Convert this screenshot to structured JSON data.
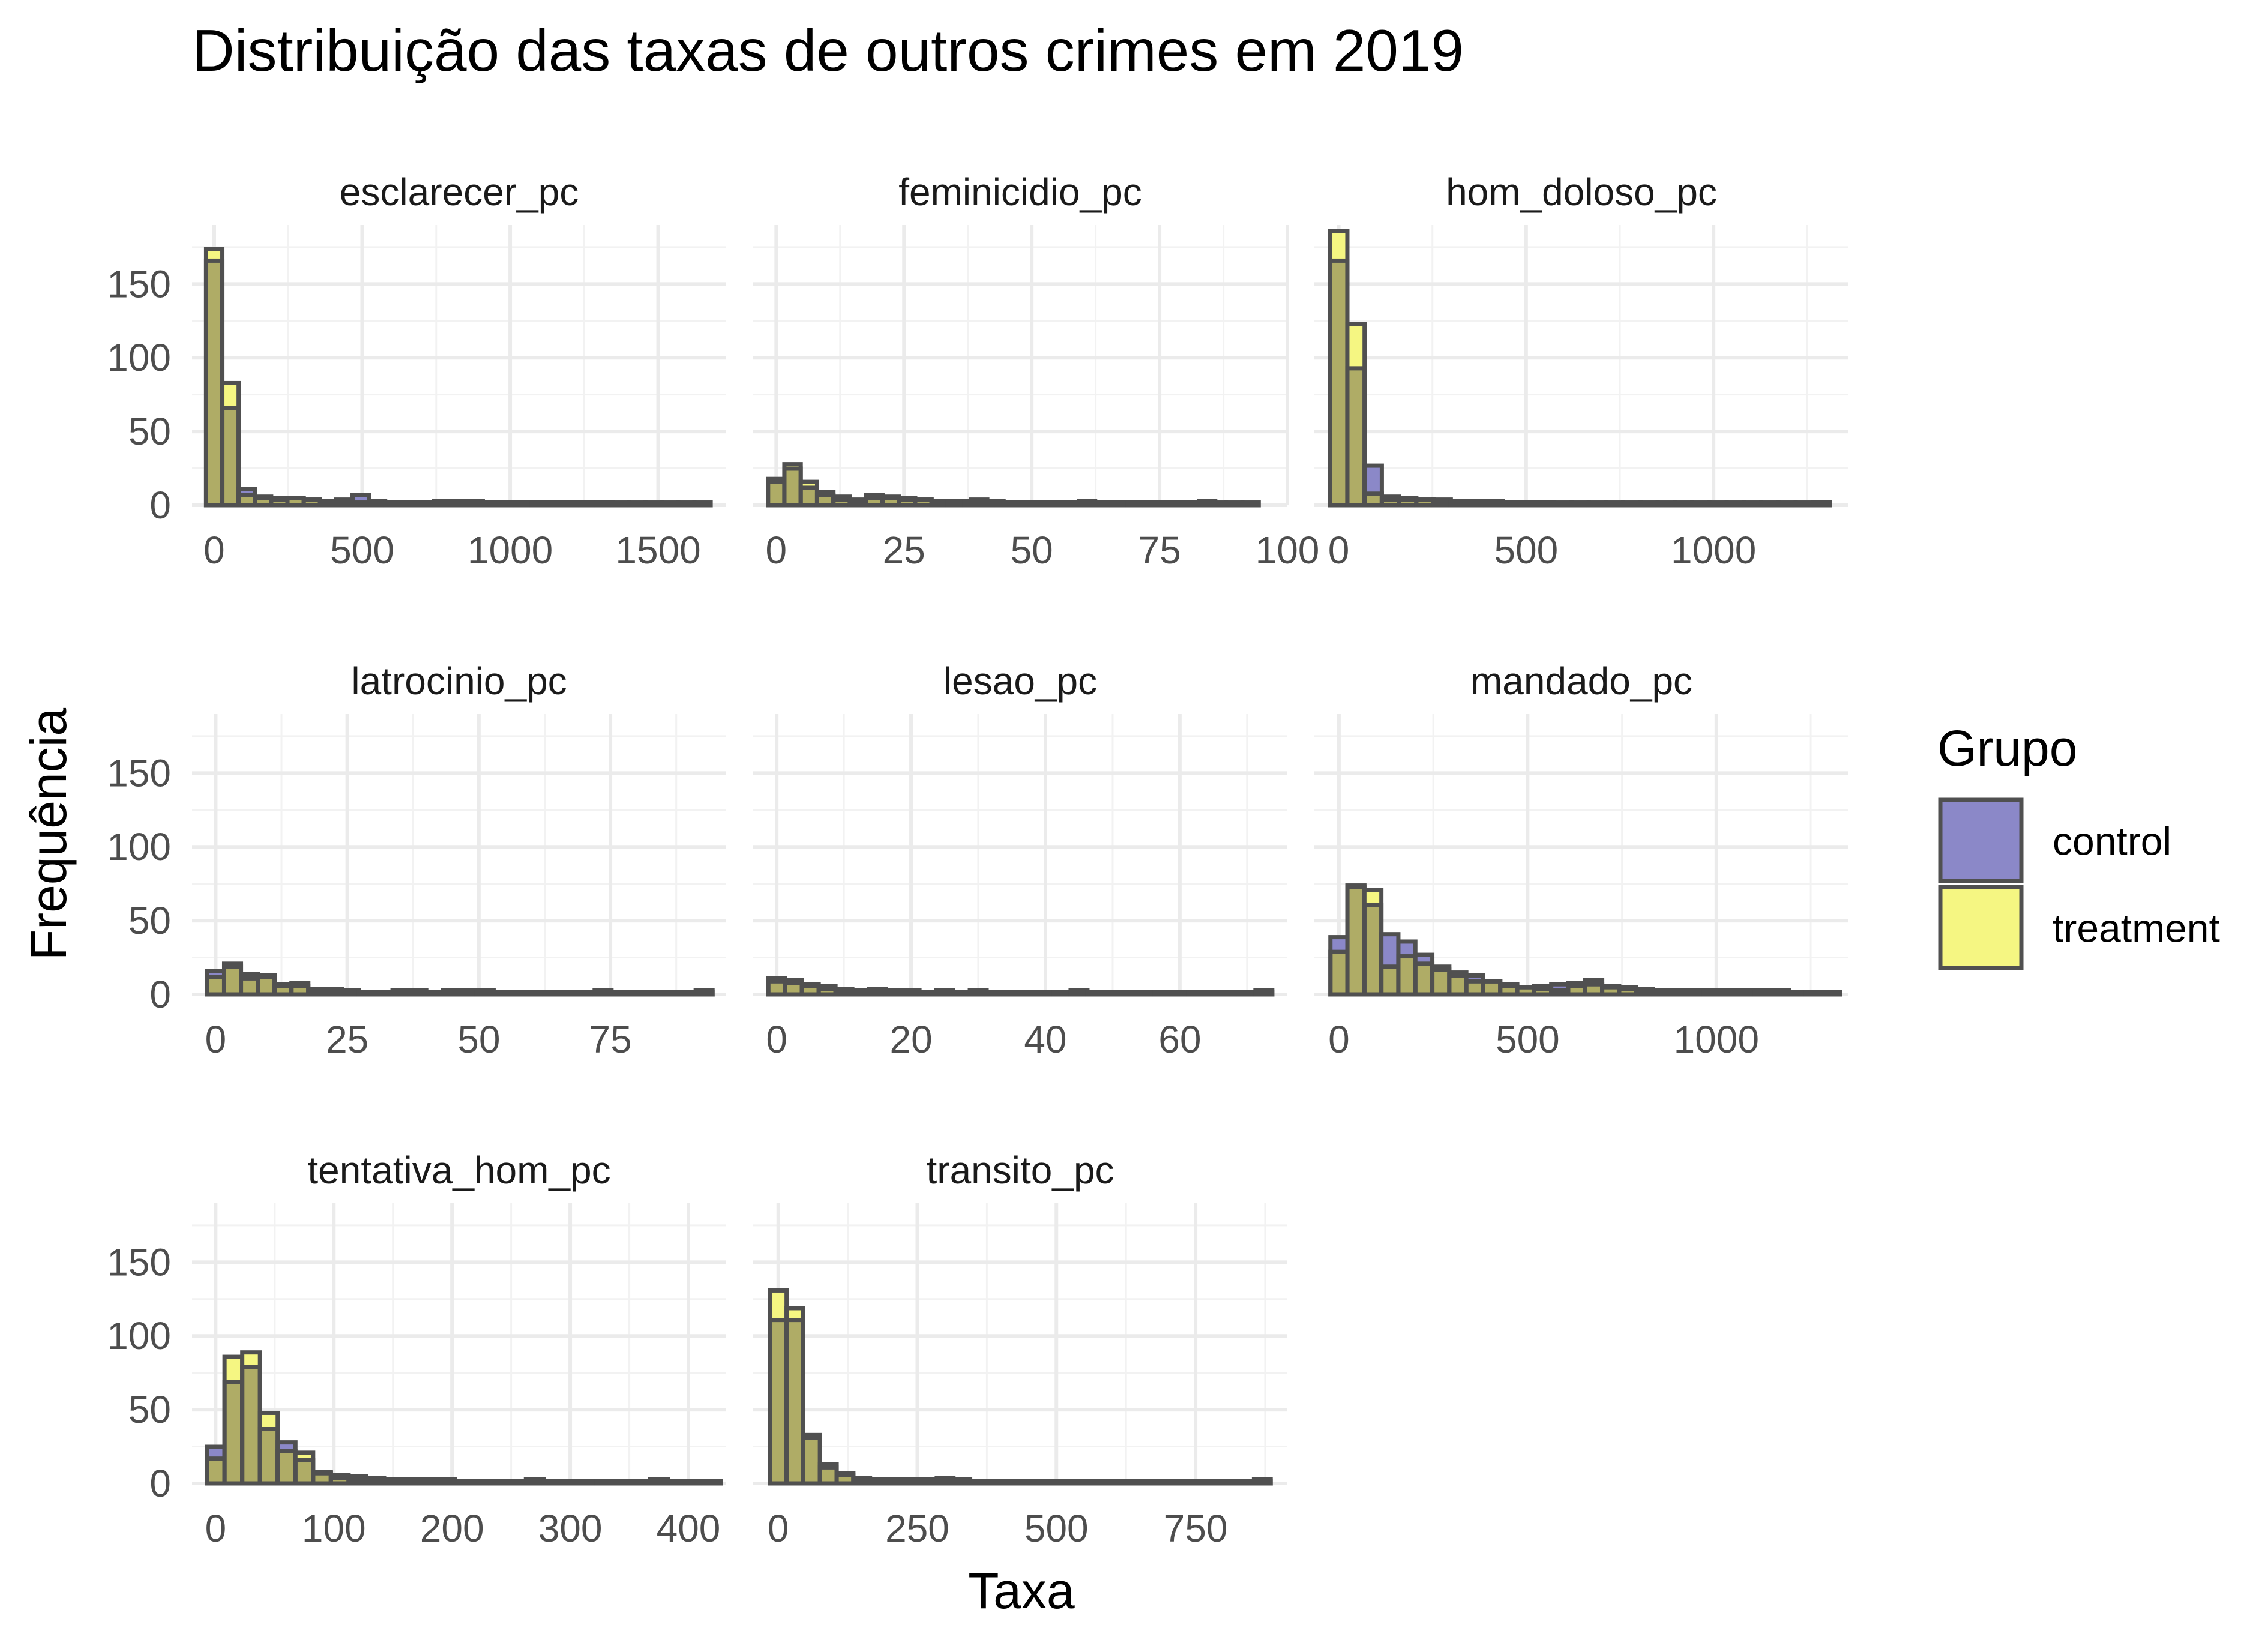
{
  "chart_data": {
    "type": "bar",
    "title": "Distribuição das taxas de outros crimes em 2019",
    "xlabel": "Taxa",
    "ylabel": "Frequência",
    "ylim": [
      0,
      190
    ],
    "y_ticks": [
      0,
      50,
      100,
      150
    ],
    "grid": true,
    "legend": {
      "title": "Grupo",
      "position": "right",
      "entries": [
        {
          "name": "control",
          "color": "#8B88C8"
        },
        {
          "name": "treatment",
          "color": "#F5F682"
        }
      ]
    },
    "overlap_color": "#AFAC66",
    "bar_stroke_color": "#505050",
    "panels": [
      {
        "name": "esclarecer_pc",
        "xlim": [
          -75,
          1730
        ],
        "x_ticks": [
          0,
          500,
          1000,
          1500
        ],
        "bin_start": -27.5,
        "bin_width": 55,
        "series": [
          {
            "name": "control",
            "values": [
              165,
              65,
              10,
              5,
              4,
              4,
              3,
              2,
              3,
              6,
              1,
              1,
              1,
              1,
              2,
              2,
              2,
              1,
              1,
              1,
              1,
              1,
              1,
              1,
              1,
              1,
              1,
              1,
              1,
              1,
              1,
              0,
              0,
              0,
              0,
              0,
              0,
              0,
              0,
              0,
              1,
              1,
              1,
              1,
              1,
              1,
              2,
              3,
              2,
              1,
              1,
              1,
              1,
              1,
              1,
              1,
              1,
              1,
              1,
              1,
              1,
              1
            ]
          },
          {
            "name": "treatment",
            "values": [
              173,
              82,
              6,
              4,
              3,
              4,
              3,
              1,
              2,
              1,
              2,
              1,
              1,
              1,
              2,
              2,
              1,
              1,
              1,
              1,
              1,
              1,
              1,
              1,
              1,
              0,
              0,
              0,
              0,
              0,
              0,
              0,
              0,
              0,
              0,
              0,
              0,
              0,
              0,
              0,
              1,
              2,
              1,
              1,
              1,
              1,
              2,
              1,
              1,
              1,
              1,
              1,
              0,
              0,
              0,
              0,
              0,
              0,
              0,
              0,
              1,
              2
            ]
          }
        ]
      },
      {
        "name": "feminicidio_pc",
        "xlim": [
          -4.5,
          100
        ],
        "x_ticks": [
          0,
          25,
          50,
          75,
          100
        ],
        "bin_start": -1.6,
        "bin_width": 3.2,
        "series": [
          {
            "name": "control",
            "values": [
              15,
              24,
              11,
              6,
              3,
              2,
              4,
              4,
              3,
              3,
              2,
              2,
              2,
              1,
              1,
              1,
              1,
              1,
              1,
              1,
              1,
              1,
              1,
              1,
              1,
              1,
              1,
              1,
              1,
              0
            ]
          },
          {
            "name": "treatment",
            "values": [
              17,
              27,
              15,
              8,
              5,
              3,
              6,
              5,
              4,
              3,
              2,
              1,
              2,
              2,
              1,
              1,
              1,
              1,
              1,
              2,
              1,
              1,
              1,
              0,
              0,
              0,
              0,
              0,
              0,
              1
            ]
          }
        ]
      },
      {
        "name": "hom_doloso_pc",
        "xlim": [
          -65,
          1360
        ],
        "x_ticks": [
          0,
          500,
          1000
        ],
        "bin_start": -23,
        "bin_width": 46,
        "series": [
          {
            "name": "control",
            "values": [
              165,
              92,
              26,
              5,
              4,
              3,
              3,
              2,
              2,
              2,
              1,
              1,
              1,
              1,
              1,
              1,
              1,
              1,
              1,
              1,
              1,
              1,
              1,
              1,
              1,
              1,
              1,
              1,
              1
            ]
          },
          {
            "name": "treatment",
            "values": [
              185,
              122,
              7,
              3,
              3,
              3,
              2,
              1,
              1,
              1,
              1,
              1,
              1,
              0,
              0,
              0,
              0,
              0,
              0,
              0,
              0,
              0,
              0,
              0,
              0,
              0,
              0,
              0,
              1
            ]
          }
        ]
      },
      {
        "name": "latrocinio_pc",
        "xlim": [
          -4.5,
          97
        ],
        "x_ticks": [
          0,
          25,
          50,
          75
        ],
        "bin_start": -1.6,
        "bin_width": 3.2,
        "series": [
          {
            "name": "control",
            "values": [
              15,
              20,
              13,
              11,
              6,
              7,
              2,
              3,
              1,
              1,
              1,
              2,
              2,
              1,
              1,
              2,
              2,
              1,
              1,
              1,
              1,
              1,
              1,
              2,
              1,
              1,
              1,
              1,
              1,
              1
            ]
          },
          {
            "name": "treatment",
            "values": [
              11,
              18,
              10,
              12,
              5,
              5,
              3,
              2,
              2,
              1,
              1,
              1,
              1,
              1,
              2,
              1,
              1,
              1,
              1,
              1,
              1,
              1,
              1,
              1,
              1,
              1,
              1,
              1,
              1,
              2
            ]
          }
        ]
      },
      {
        "name": "lesao_pc",
        "xlim": [
          -3.5,
          76
        ],
        "x_ticks": [
          0,
          20,
          40,
          60
        ],
        "bin_start": -1.25,
        "bin_width": 2.5,
        "series": [
          {
            "name": "control",
            "values": [
              10,
              7,
              6,
              5,
              3,
              2,
              3,
              2,
              2,
              1,
              2,
              1,
              2,
              1,
              1,
              1,
              1,
              1,
              2,
              1,
              1,
              1,
              1,
              1,
              1,
              1,
              1,
              1,
              1,
              2
            ]
          },
          {
            "name": "treatment",
            "values": [
              8,
              9,
              5,
              3,
              2,
              2,
              2,
              2,
              1,
              1,
              1,
              1,
              1,
              1,
              1,
              1,
              1,
              1,
              1,
              1,
              1,
              1,
              1,
              1,
              1,
              1,
              1,
              1,
              1,
              1
            ]
          }
        ]
      },
      {
        "name": "mandado_pc",
        "xlim": [
          -65,
          1350
        ],
        "x_ticks": [
          0,
          500,
          1000
        ],
        "bin_start": -22.5,
        "bin_width": 45,
        "series": [
          {
            "name": "control",
            "values": [
              38,
              73,
              60,
              40,
              35,
              26,
              18,
              14,
              12,
              8,
              5,
              4,
              5,
              6,
              5,
              6,
              5,
              4,
              3,
              2,
              2,
              2,
              2,
              2,
              2,
              2,
              2,
              1,
              1,
              1
            ]
          },
          {
            "name": "treatment",
            "values": [
              28,
              72,
              70,
              18,
              25,
              20,
              16,
              12,
              8,
              8,
              6,
              4,
              3,
              2,
              7,
              9,
              4,
              3,
              2,
              2,
              2,
              1,
              1,
              1,
              2,
              1,
              1,
              1,
              1,
              1
            ]
          }
        ]
      },
      {
        "name": "tentativa_hom_pc",
        "xlim": [
          -20,
          432
        ],
        "x_ticks": [
          0,
          100,
          200,
          300,
          400
        ],
        "bin_start": -7.5,
        "bin_width": 15,
        "series": [
          {
            "name": "control",
            "values": [
              24,
              68,
              78,
              36,
              27,
              15,
              7,
              3,
              2,
              2,
              2,
              2,
              2,
              1,
              1,
              1,
              1,
              1,
              2,
              1,
              1,
              1,
              1,
              1,
              1,
              2,
              1,
              1,
              1
            ]
          },
          {
            "name": "treatment",
            "values": [
              16,
              85,
              88,
              47,
              21,
              20,
              6,
              5,
              4,
              3,
              2,
              2,
              1,
              2,
              1,
              1,
              1,
              1,
              1,
              1,
              1,
              1,
              1,
              1,
              1,
              1,
              1,
              1,
              1
            ]
          }
        ]
      },
      {
        "name": "transito_pc",
        "xlim": [
          -45,
          915
        ],
        "x_ticks": [
          0,
          250,
          500,
          750
        ],
        "bin_start": -15,
        "bin_width": 30,
        "series": [
          {
            "name": "control",
            "values": [
              110,
              110,
              30,
              12,
              6,
              3,
              2,
              2,
              2,
              2,
              3,
              2,
              1,
              1,
              1,
              1,
              1,
              1,
              1,
              1,
              1,
              1,
              1,
              1,
              1,
              1,
              1,
              1,
              1,
              1
            ]
          },
          {
            "name": "treatment",
            "values": [
              130,
              118,
              32,
              10,
              5,
              2,
              2,
              1,
              1,
              1,
              2,
              1,
              1,
              1,
              1,
              1,
              1,
              1,
              1,
              1,
              1,
              1,
              1,
              1,
              1,
              1,
              1,
              1,
              1,
              2
            ]
          }
        ]
      }
    ]
  }
}
